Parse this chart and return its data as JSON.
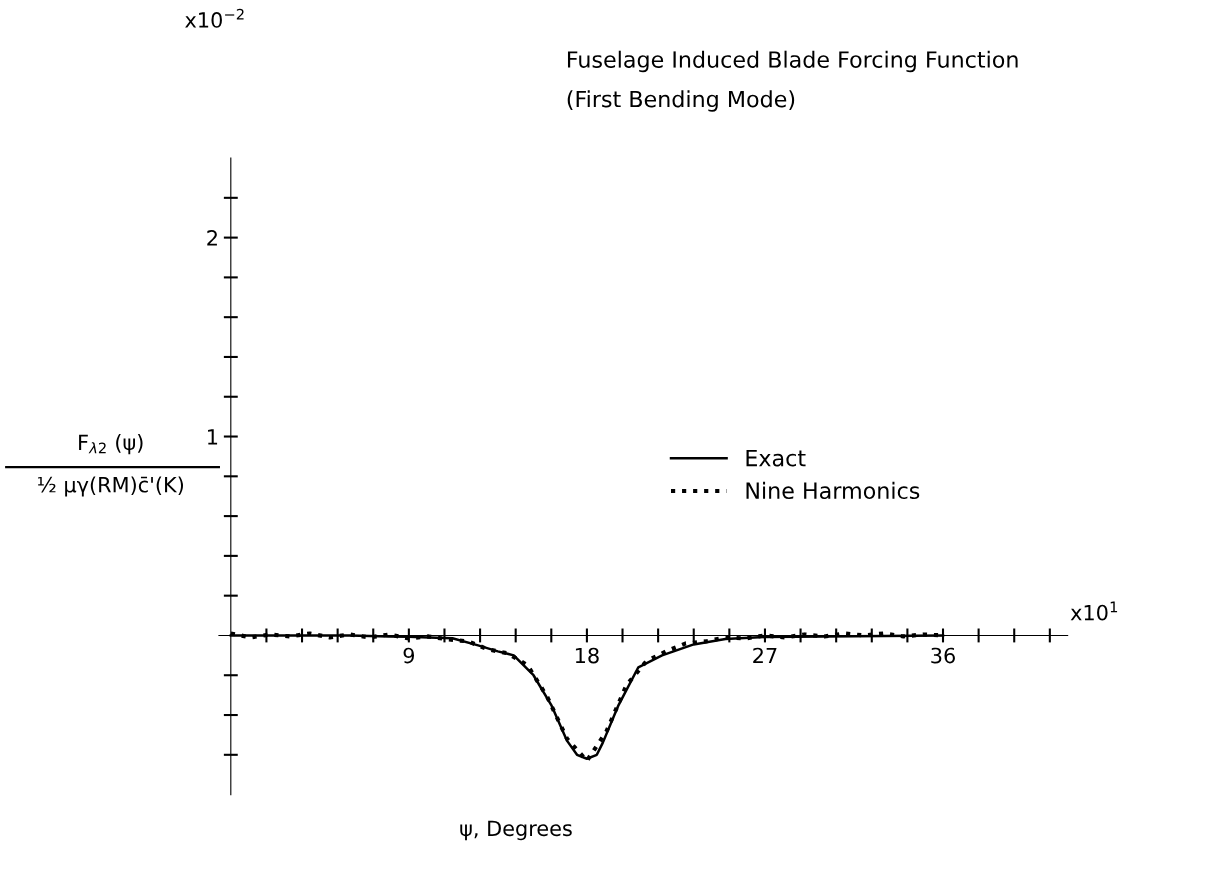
{
  "chart_data": {
    "type": "line",
    "title": "Fuselage Induced Blade Forcing Function",
    "subtitle": "(First Bending Mode)",
    "xlabel": "ψ, Degrees",
    "ylabel": "F$_{λ2}$ (ψ)\n½ μγ(RM)c̄'(K)",
    "annotations": [
      "x10$^{−2}$",
      "x10$^{1}$"
    ],
    "xlim": [
      -0.6,
      42.3
    ],
    "ylim": [
      -0.8,
      2.4
    ],
    "xticks": [
      {
        "value": 1.8,
        "label": null
      },
      {
        "value": 3.6,
        "label": null
      },
      {
        "value": 5.4,
        "label": null
      },
      {
        "value": 7.2,
        "label": null
      },
      9,
      {
        "value": 10.8,
        "label": null
      },
      {
        "value": 12.6,
        "label": null
      },
      {
        "value": 14.4,
        "label": null
      },
      {
        "value": 16.2,
        "label": null
      },
      18,
      {
        "value": 19.8,
        "label": null
      },
      {
        "value": 21.6,
        "label": null
      },
      {
        "value": 23.4,
        "label": null
      },
      {
        "value": 25.2,
        "label": null
      },
      27,
      {
        "value": 28.8,
        "label": null
      },
      {
        "value": 30.6,
        "label": null
      },
      {
        "value": 32.4,
        "label": null
      },
      {
        "value": 34.2,
        "label": null
      },
      36,
      {
        "value": 37.8,
        "label": null
      },
      {
        "value": 39.6,
        "label": null
      },
      {
        "value": 41.4,
        "label": null
      }
    ],
    "yticks": [
      {
        "value": -0.6,
        "label": null
      },
      {
        "value": -0.4,
        "label": null
      },
      {
        "value": -0.2,
        "label": null
      },
      {
        "value": 0.2,
        "label": null
      },
      {
        "value": 0.4,
        "label": null
      },
      {
        "value": 0.6,
        "label": null
      },
      {
        "value": 0.8,
        "label": null
      },
      1,
      {
        "value": 1.2,
        "label": null
      },
      {
        "value": 1.4,
        "label": null
      },
      {
        "value": 1.6,
        "label": null
      },
      {
        "value": 1.8,
        "label": null
      },
      2,
      {
        "value": 2.2,
        "label": null
      }
    ],
    "legend": "center right",
    "grid": false,
    "series": [
      {
        "name": "Exact",
        "color": "#000000",
        "line_style": "solid",
        "x": [
          0,
          2,
          4,
          6,
          8,
          9,
          10,
          11.2,
          12.5,
          13.5,
          14.3,
          15.3,
          16.2,
          17,
          17.5,
          18,
          18.5,
          18.8,
          19.6,
          20.6,
          21.8,
          23.4,
          25,
          27,
          30,
          33,
          36
        ],
        "values": [
          0,
          0,
          0,
          0,
          -0.005,
          -0.007,
          -0.01,
          -0.014,
          -0.05,
          -0.08,
          -0.1,
          -0.2,
          -0.35,
          -0.53,
          -0.6,
          -0.62,
          -0.6,
          -0.54,
          -0.35,
          -0.16,
          -0.1,
          -0.045,
          -0.018,
          -0.008,
          -0.005,
          -0.003,
          0
        ]
      },
      {
        "name": "Nine Harmonics",
        "color": "#000000",
        "line_style": "dotted",
        "x": [
          0,
          1,
          2,
          3,
          4,
          5,
          6,
          7,
          8,
          9,
          10,
          11,
          12,
          13,
          14,
          15,
          16,
          17,
          18,
          19,
          20,
          21,
          22,
          23,
          24,
          25,
          26,
          27,
          28,
          29,
          30,
          31,
          32,
          33,
          34,
          35,
          36
        ],
        "values": [
          0.01,
          -0.01,
          0.005,
          -0.005,
          0.01,
          -0.01,
          0.005,
          -0.01,
          0.005,
          -0.015,
          -0.005,
          -0.02,
          -0.03,
          -0.07,
          -0.09,
          -0.15,
          -0.31,
          -0.52,
          -0.63,
          -0.48,
          -0.25,
          -0.13,
          -0.08,
          -0.04,
          -0.03,
          -0.01,
          -0.015,
          0,
          -0.01,
          0.005,
          -0.005,
          0.01,
          0,
          0.01,
          -0.005,
          0.005,
          0
        ]
      }
    ]
  }
}
